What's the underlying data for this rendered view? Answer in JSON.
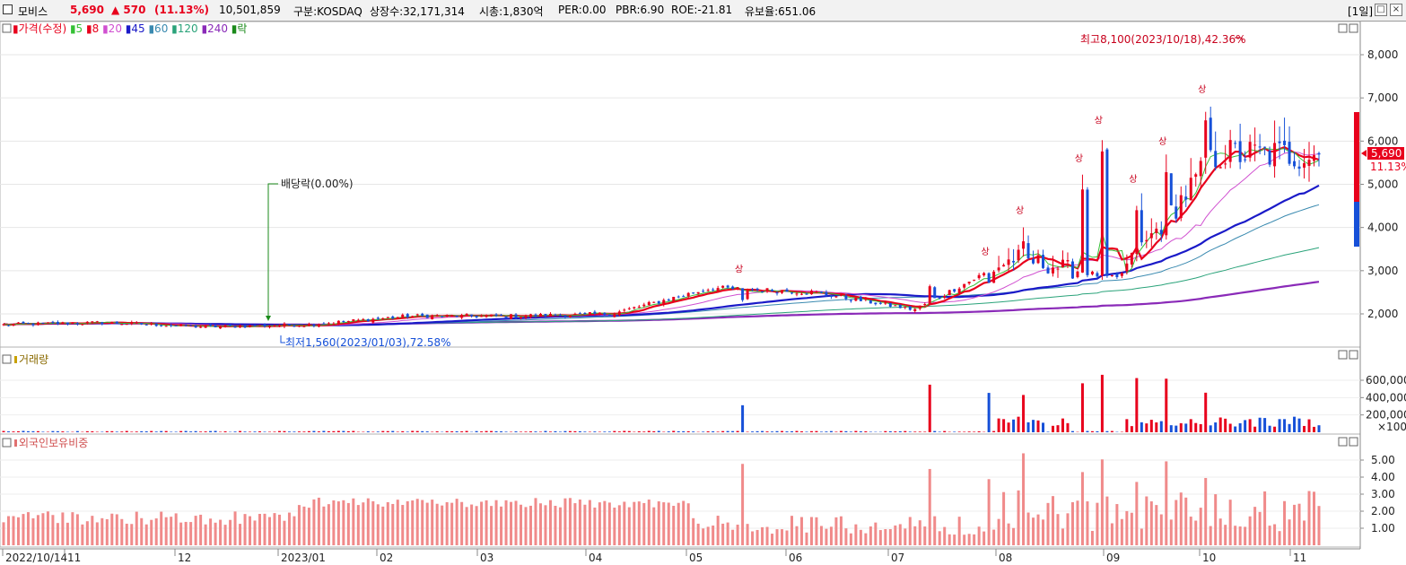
{
  "header": {
    "stock_name": "모비스",
    "price": "5,690",
    "change": "▲ 570",
    "change_pct": "(11.13%)",
    "volume": "10,501,859",
    "market": "구분:KOSDAQ",
    "shares": "상장수:32,171,314",
    "market_cap": "시총:1,830억",
    "per": "PER:0.00",
    "pbr": "PBR:6.90",
    "roe": "ROE:-21.81",
    "retention": "유보율:651.06",
    "period": "[1일]",
    "up_color": "#e8001c",
    "down_color": "#1650d8"
  },
  "price_panel": {
    "legend": [
      {
        "label": "가격(수정)",
        "color": "#e8001c"
      },
      {
        "label": "5",
        "color": "#35c035"
      },
      {
        "label": "8",
        "color": "#e8001c"
      },
      {
        "label": "20",
        "color": "#d050d0"
      },
      {
        "label": "45",
        "color": "#1a1ac8"
      },
      {
        "label": "60",
        "color": "#3a8ab0"
      },
      {
        "label": "120",
        "color": "#2aa37a"
      },
      {
        "label": "240",
        "color": "#8a2ab8"
      },
      {
        "label": "락",
        "color": "#1a8a1a"
      }
    ],
    "yticks": [
      "8,000",
      "7,000",
      "6,000",
      "5,000",
      "4,000",
      "3,000",
      "2,000"
    ],
    "current_price_tag": "5,690",
    "current_pct_tag": "11.13%",
    "high_annotation": "최고8,100(2023/10/18),42.36%",
    "low_annotation": "최저1,560(2023/01/03),72.58%",
    "dividend_annotation": "배당락(0.00%)",
    "upper_limit_mark": "상"
  },
  "volume_panel": {
    "legend": "거래량",
    "yticks": [
      "600,000",
      "400,000",
      "200,000",
      "×100"
    ]
  },
  "foreign_panel": {
    "legend": "외국인보유비중",
    "yticks": [
      "5.00",
      "4.00",
      "3.00",
      "2.00",
      "1.00"
    ]
  },
  "x_axis": {
    "labels": [
      "2022/10/14",
      "11",
      "12",
      "2023/01",
      "02",
      "03",
      "04",
      "05",
      "06",
      "07",
      "08",
      "09",
      "10",
      "11"
    ]
  },
  "chart_data": {
    "type": "candlestick",
    "title": "모비스",
    "x_range": [
      "2022/10/14",
      "2023/11/14"
    ],
    "y_range_price": [
      1400,
      8500
    ],
    "y_range_volume": [
      0,
      900000
    ],
    "y_range_foreign_pct": [
      0,
      6
    ],
    "anchors": {
      "high": {
        "date": "2023/10/18",
        "value": 8100,
        "pct": 42.36
      },
      "low": {
        "date": "2023/01/03",
        "value": 1560,
        "pct": 72.58
      },
      "last_close": 5690,
      "last_change": 570,
      "last_change_pct": 11.13
    },
    "monthly_close_approx": [
      {
        "month": "2022/10",
        "close": 1750
      },
      {
        "month": "2022/11",
        "close": 1800
      },
      {
        "month": "2022/12",
        "close": 1700
      },
      {
        "month": "2023/01",
        "close": 1750
      },
      {
        "month": "2023/02",
        "close": 1950
      },
      {
        "month": "2023/03",
        "close": 1950
      },
      {
        "month": "2023/04",
        "close": 2000
      },
      {
        "month": "2023/05",
        "close": 2600
      },
      {
        "month": "2023/06",
        "close": 2500
      },
      {
        "month": "2023/07",
        "close": 2100
      },
      {
        "month": "2023/08",
        "close": 3300
      },
      {
        "month": "2023/09",
        "close": 2800
      },
      {
        "month": "2023/10",
        "close": 5700
      },
      {
        "month": "2023/11",
        "close": 5690
      }
    ],
    "moving_averages_end": [
      {
        "name": "5",
        "value": 5400
      },
      {
        "name": "8",
        "value": 5500
      },
      {
        "name": "20",
        "value": 5300
      },
      {
        "name": "45",
        "value": 4600
      },
      {
        "name": "60",
        "value": 4300
      },
      {
        "name": "120",
        "value": 3400
      },
      {
        "name": "240",
        "value": 2650
      }
    ]
  }
}
